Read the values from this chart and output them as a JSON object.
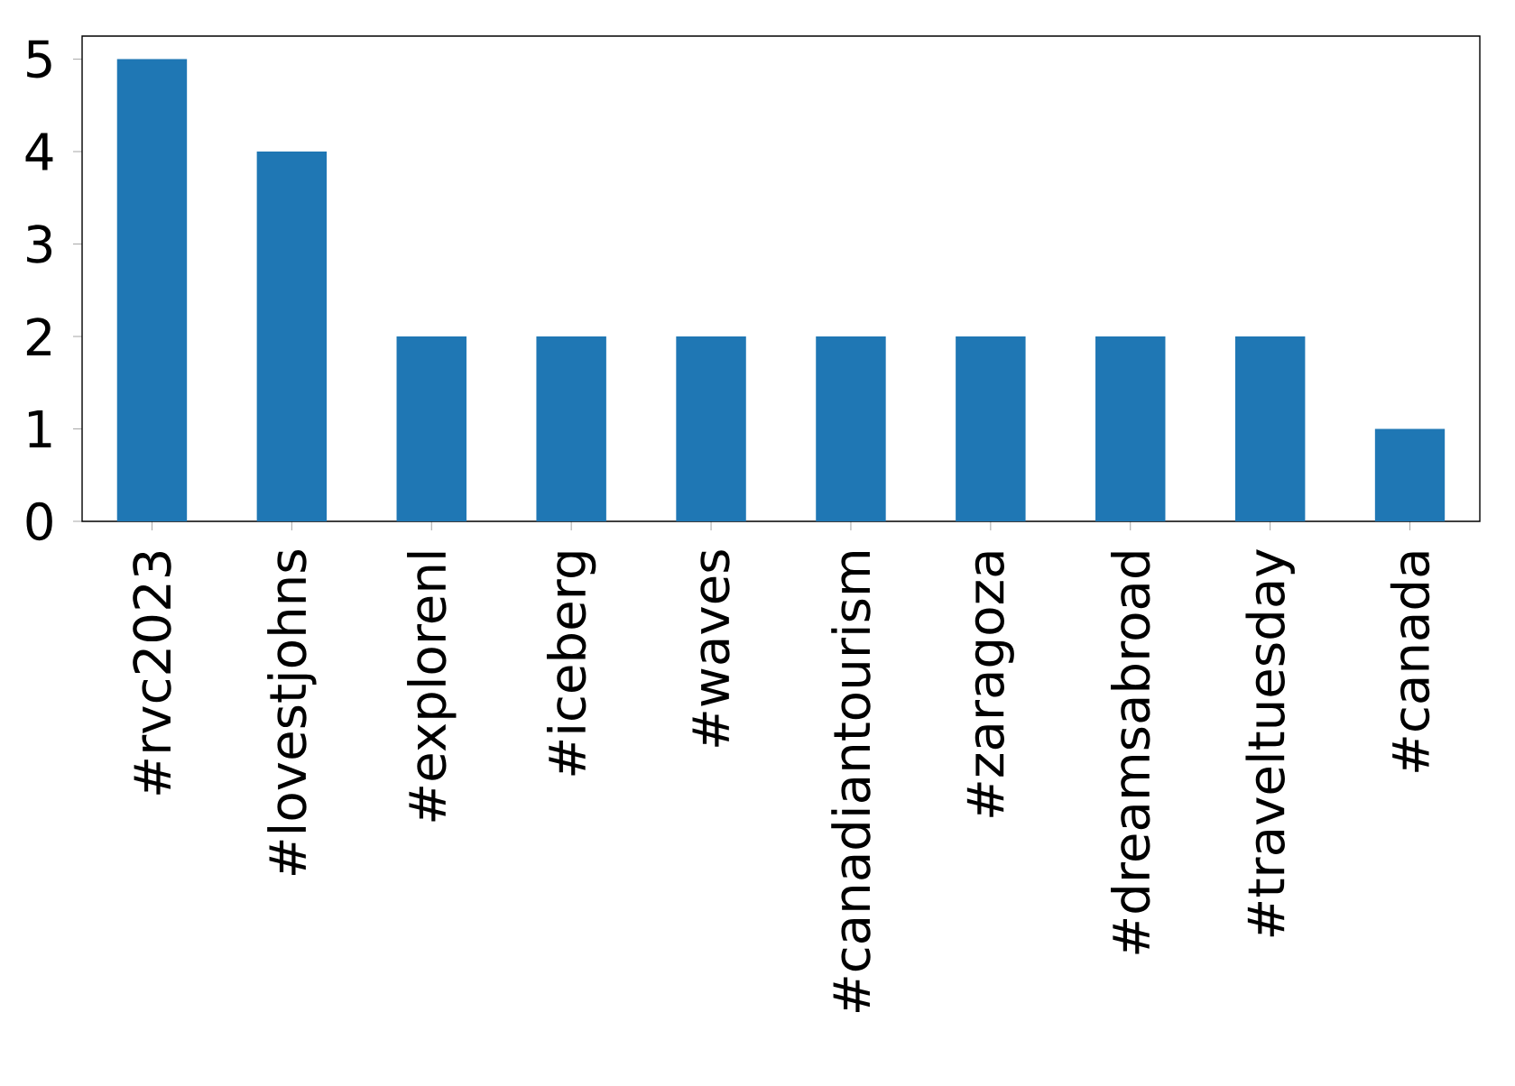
{
  "chart_data": {
    "type": "bar",
    "categories": [
      "#rvc2023",
      "#lovestjohns",
      "#explorenl",
      "#iceberg",
      "#waves",
      "#canadiantourism",
      "#zaragoza",
      "#dreamsabroad",
      "#traveltuesday",
      "#canada"
    ],
    "values": [
      5,
      4,
      2,
      2,
      2,
      2,
      2,
      2,
      2,
      1
    ],
    "color": "#1f77b4",
    "ylim": [
      0,
      5.25
    ],
    "yticks": [
      0,
      1,
      2,
      3,
      4,
      5
    ],
    "grid": false
  }
}
